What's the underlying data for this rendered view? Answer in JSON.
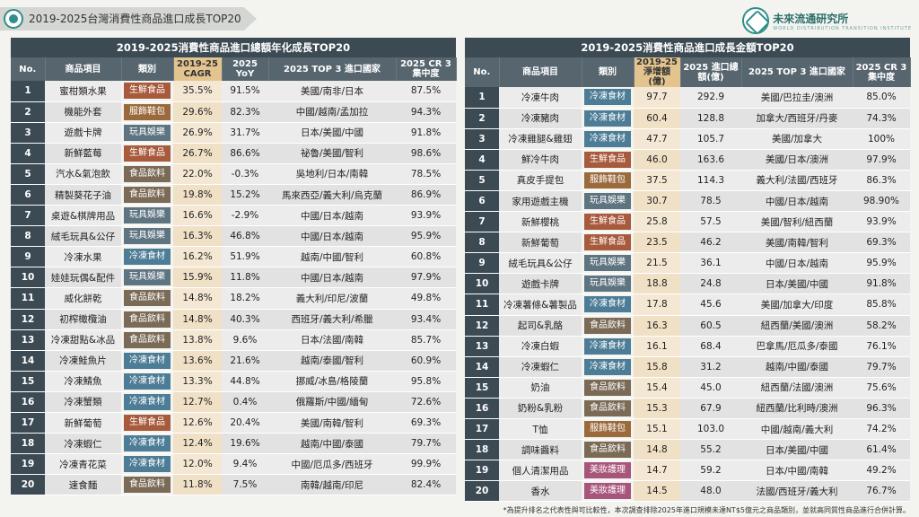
{
  "page_title": "2019-2025台灣消費性商品進口成長TOP20",
  "brand": {
    "name": "未來流通研究所",
    "sub": "WORLD DISTRIBUTION TRANSITION INSTITUTE"
  },
  "colors": {
    "生鮮食品": "#a85a3c",
    "服飾鞋包": "#9b6a3c",
    "玩具娛樂": "#5e7480",
    "食品飲料": "#7a6a56",
    "冷凍食材": "#4d7d96",
    "美妝護理": "#a8557c"
  },
  "left": {
    "title": "2019-2025消費性商品進口總額年化成長TOP20",
    "headers": {
      "no": "No.",
      "item": "商品項目",
      "cat": "類別",
      "metric1": "2019-25 CAGR",
      "metric2": "2025 YoY",
      "countries": "2025 TOP 3 進口國家",
      "cr": "2025 CR 3 集中度"
    },
    "rows": [
      {
        "no": "1",
        "item": "蜜柑類水果",
        "cat": "生鮮食品",
        "m1": "35.5%",
        "m2": "91.5%",
        "countries": "美國/南非/日本",
        "cr": "87.5%"
      },
      {
        "no": "2",
        "item": "機能外套",
        "cat": "服飾鞋包",
        "m1": "29.6%",
        "m2": "82.3%",
        "countries": "中國/越南/孟加拉",
        "cr": "94.3%"
      },
      {
        "no": "3",
        "item": "遊戲卡牌",
        "cat": "玩具娛樂",
        "m1": "26.9%",
        "m2": "31.7%",
        "countries": "日本/美國/中國",
        "cr": "91.8%"
      },
      {
        "no": "4",
        "item": "新鮮藍莓",
        "cat": "生鮮食品",
        "m1": "26.7%",
        "m2": "86.6%",
        "countries": "祕魯/美國/智利",
        "cr": "98.6%"
      },
      {
        "no": "5",
        "item": "汽水&氣泡飲",
        "cat": "食品飲料",
        "m1": "22.0%",
        "m2": "-0.3%",
        "countries": "吳地利/日本/南韓",
        "cr": "78.5%"
      },
      {
        "no": "6",
        "item": "精製葵花子油",
        "cat": "食品飲料",
        "m1": "19.8%",
        "m2": "15.2%",
        "countries": "馬來西亞/義大利/烏克蘭",
        "cr": "86.9%"
      },
      {
        "no": "7",
        "item": "桌遊&棋牌用品",
        "cat": "玩具娛樂",
        "m1": "16.6%",
        "m2": "-2.9%",
        "countries": "中國/日本/越南",
        "cr": "93.9%"
      },
      {
        "no": "8",
        "item": "絨毛玩具&公仔",
        "cat": "玩具娛樂",
        "m1": "16.3%",
        "m2": "46.8%",
        "countries": "中國/日本/越南",
        "cr": "95.9%"
      },
      {
        "no": "9",
        "item": "冷凍水果",
        "cat": "冷凍食材",
        "m1": "16.2%",
        "m2": "51.9%",
        "countries": "越南/中國/智利",
        "cr": "60.8%"
      },
      {
        "no": "10",
        "item": "娃娃玩偶&配件",
        "cat": "玩具娛樂",
        "m1": "15.9%",
        "m2": "11.8%",
        "countries": "中國/日本/越南",
        "cr": "97.9%"
      },
      {
        "no": "11",
        "item": "威化餅乾",
        "cat": "食品飲料",
        "m1": "14.8%",
        "m2": "18.2%",
        "countries": "義大利/印尼/波蘭",
        "cr": "49.8%"
      },
      {
        "no": "12",
        "item": "初榨橄欖油",
        "cat": "食品飲料",
        "m1": "14.8%",
        "m2": "40.3%",
        "countries": "西班牙/義大利/希臘",
        "cr": "93.4%"
      },
      {
        "no": "13",
        "item": "冷凍甜點&冰品",
        "cat": "食品飲料",
        "m1": "13.8%",
        "m2": "9.6%",
        "countries": "日本/法國/南韓",
        "cr": "85.7%"
      },
      {
        "no": "14",
        "item": "冷凍鮭魚片",
        "cat": "冷凍食材",
        "m1": "13.6%",
        "m2": "21.6%",
        "countries": "越南/泰國/智利",
        "cr": "60.9%"
      },
      {
        "no": "15",
        "item": "冷凍鯖魚",
        "cat": "冷凍食材",
        "m1": "13.3%",
        "m2": "44.8%",
        "countries": "挪威/冰島/格陵蘭",
        "cr": "95.8%"
      },
      {
        "no": "16",
        "item": "冷凍蟹類",
        "cat": "冷凍食材",
        "m1": "12.7%",
        "m2": "0.4%",
        "countries": "俄羅斯/中國/緬甸",
        "cr": "72.6%"
      },
      {
        "no": "17",
        "item": "新鮮葡萄",
        "cat": "生鮮食品",
        "m1": "12.6%",
        "m2": "20.4%",
        "countries": "美國/南韓/智利",
        "cr": "69.3%"
      },
      {
        "no": "18",
        "item": "冷凍蝦仁",
        "cat": "冷凍食材",
        "m1": "12.4%",
        "m2": "19.6%",
        "countries": "越南/中國/泰國",
        "cr": "79.7%"
      },
      {
        "no": "19",
        "item": "冷凍青花菜",
        "cat": "冷凍食材",
        "m1": "12.0%",
        "m2": "9.4%",
        "countries": "中國/厄瓜多/西班牙",
        "cr": "99.9%"
      },
      {
        "no": "20",
        "item": "速食麵",
        "cat": "食品飲料",
        "m1": "11.8%",
        "m2": "7.5%",
        "countries": "南韓/越南/印尼",
        "cr": "82.4%"
      }
    ]
  },
  "right": {
    "title": "2019-2025消費性商品進口成長金額TOP20",
    "headers": {
      "no": "No.",
      "item": "商品項目",
      "cat": "類別",
      "metric1": "2019-25 淨增額(億)",
      "metric2": "2025 進口總額(億)",
      "countries": "2025 TOP 3 進口國家",
      "cr": "2025 CR 3 集中度"
    },
    "rows": [
      {
        "no": "1",
        "item": "冷凍牛肉",
        "cat": "冷凍食材",
        "m1": "97.7",
        "m2": "292.9",
        "countries": "美國/巴拉圭/澳洲",
        "cr": "85.0%"
      },
      {
        "no": "2",
        "item": "冷凍豬肉",
        "cat": "冷凍食材",
        "m1": "60.4",
        "m2": "128.8",
        "countries": "加拿大/西班牙/丹麥",
        "cr": "74.3%"
      },
      {
        "no": "3",
        "item": "冷凍雞腿&雞翅",
        "cat": "冷凍食材",
        "m1": "47.7",
        "m2": "105.7",
        "countries": "美國/加拿大",
        "cr": "100%"
      },
      {
        "no": "4",
        "item": "鮮冷牛肉",
        "cat": "生鮮食品",
        "m1": "46.0",
        "m2": "163.6",
        "countries": "美國/日本/澳洲",
        "cr": "97.9%"
      },
      {
        "no": "5",
        "item": "真皮手提包",
        "cat": "服飾鞋包",
        "m1": "37.5",
        "m2": "114.3",
        "countries": "義大利/法國/西班牙",
        "cr": "86.3%"
      },
      {
        "no": "6",
        "item": "家用遊戲主機",
        "cat": "玩具娛樂",
        "m1": "30.7",
        "m2": "78.5",
        "countries": "中國/日本/越南",
        "cr": "98.90%"
      },
      {
        "no": "7",
        "item": "新鮮櫻桃",
        "cat": "生鮮食品",
        "m1": "25.8",
        "m2": "57.5",
        "countries": "美國/智利/紐西蘭",
        "cr": "93.9%"
      },
      {
        "no": "8",
        "item": "新鮮葡萄",
        "cat": "生鮮食品",
        "m1": "23.5",
        "m2": "46.2",
        "countries": "美國/南韓/智利",
        "cr": "69.3%"
      },
      {
        "no": "9",
        "item": "絨毛玩具&公仔",
        "cat": "玩具娛樂",
        "m1": "21.5",
        "m2": "36.1",
        "countries": "中國/日本/越南",
        "cr": "95.9%"
      },
      {
        "no": "10",
        "item": "遊戲卡牌",
        "cat": "玩具娛樂",
        "m1": "18.8",
        "m2": "24.8",
        "countries": "日本/美國/中國",
        "cr": "91.8%"
      },
      {
        "no": "11",
        "item": "冷凍薯條&薯製品",
        "cat": "冷凍食材",
        "m1": "17.8",
        "m2": "45.6",
        "countries": "美國/加拿大/印度",
        "cr": "85.8%"
      },
      {
        "no": "12",
        "item": "起司&乳酪",
        "cat": "食品飲料",
        "m1": "16.3",
        "m2": "60.5",
        "countries": "紐西蘭/美國/澳洲",
        "cr": "58.2%"
      },
      {
        "no": "13",
        "item": "冷凍白蝦",
        "cat": "冷凍食材",
        "m1": "16.1",
        "m2": "68.4",
        "countries": "巴拿馬/厄瓜多/泰國",
        "cr": "76.1%"
      },
      {
        "no": "14",
        "item": "冷凍蝦仁",
        "cat": "冷凍食材",
        "m1": "15.8",
        "m2": "31.2",
        "countries": "越南/中國/泰國",
        "cr": "79.7%"
      },
      {
        "no": "15",
        "item": "奶油",
        "cat": "食品飲料",
        "m1": "15.4",
        "m2": "45.0",
        "countries": "紐西蘭/法國/澳洲",
        "cr": "75.6%"
      },
      {
        "no": "16",
        "item": "奶粉&乳粉",
        "cat": "食品飲料",
        "m1": "15.3",
        "m2": "67.9",
        "countries": "紐西蘭/比利時/澳洲",
        "cr": "96.3%"
      },
      {
        "no": "17",
        "item": "T恤",
        "cat": "服飾鞋包",
        "m1": "15.1",
        "m2": "103.0",
        "countries": "中國/越南/義大利",
        "cr": "74.2%"
      },
      {
        "no": "18",
        "item": "調味醬料",
        "cat": "食品飲料",
        "m1": "14.8",
        "m2": "55.2",
        "countries": "日本/美國/中國",
        "cr": "61.4%"
      },
      {
        "no": "19",
        "item": "個人清潔用品",
        "cat": "美妝護理",
        "m1": "14.7",
        "m2": "59.2",
        "countries": "日本/中國/南韓",
        "cr": "49.2%"
      },
      {
        "no": "20",
        "item": "香水",
        "cat": "美妝護理",
        "m1": "14.5",
        "m2": "48.0",
        "countries": "法國/西班牙/義大利",
        "cr": "76.7%"
      }
    ]
  },
  "footnote": "*為提升排名之代表性與可比較性，本次調查排除2025年進口規模未達NT$5億元之商品類別，並就高同質性商品進行合併計算。"
}
